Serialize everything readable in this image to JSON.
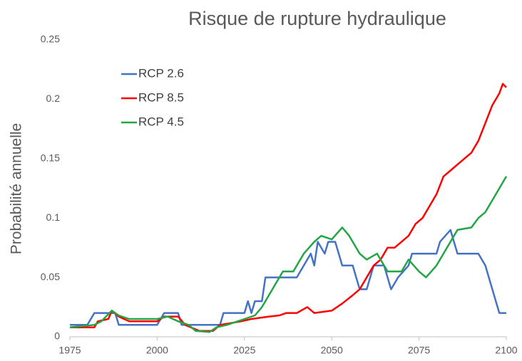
{
  "chart_data": {
    "type": "line",
    "title": "Risque de rupture hydraulique",
    "y_label": "Probabilité annuelle",
    "xlim": [
      1975,
      2100
    ],
    "xticks": [
      1975,
      2000,
      2025,
      2050,
      2075,
      2100
    ],
    "ylim": [
      0,
      0.25
    ],
    "yticks": [
      0,
      0.05,
      0.1,
      0.15,
      0.2,
      0.25
    ],
    "grid": false,
    "legend": "upper-left",
    "series": [
      {
        "name": "RCP 2.6",
        "color": "#4472c4",
        "x": [
          1975,
          1980,
          1982,
          1986,
          1988,
          1989,
          1995,
          2000,
          2002,
          2006,
          2007,
          2012,
          2018,
          2019,
          2025,
          2026,
          2027,
          2028,
          2030,
          2031,
          2036,
          2040,
          2042,
          2044,
          2045,
          2046,
          2048,
          2049,
          2051,
          2053,
          2056,
          2058,
          2060,
          2062,
          2065,
          2067,
          2069,
          2072,
          2073,
          2080,
          2081,
          2084,
          2086,
          2092,
          2094,
          2096,
          2098,
          2100
        ],
        "values": [
          0.01,
          0.01,
          0.02,
          0.02,
          0.02,
          0.01,
          0.01,
          0.01,
          0.02,
          0.02,
          0.01,
          0.01,
          0.01,
          0.02,
          0.02,
          0.03,
          0.02,
          0.03,
          0.03,
          0.05,
          0.05,
          0.05,
          0.06,
          0.07,
          0.06,
          0.08,
          0.07,
          0.08,
          0.08,
          0.06,
          0.06,
          0.04,
          0.04,
          0.06,
          0.06,
          0.04,
          0.05,
          0.06,
          0.07,
          0.07,
          0.08,
          0.09,
          0.07,
          0.07,
          0.06,
          0.04,
          0.02,
          0.02
        ]
      },
      {
        "name": "RCP 8.5",
        "color": "#ff0000",
        "x": [
          1975,
          1982,
          1983,
          1986,
          1987,
          1989,
          1992,
          2000,
          2002,
          2006,
          2008,
          2012,
          2016,
          2018,
          2024,
          2027,
          2032,
          2035,
          2037,
          2040,
          2043,
          2045,
          2050,
          2053,
          2056,
          2058,
          2060,
          2062,
          2064,
          2066,
          2068,
          2070,
          2072,
          2074,
          2076,
          2078,
          2080,
          2082,
          2084,
          2086,
          2088,
          2090,
          2092,
          2094,
          2096,
          2098,
          2099,
          2100
        ],
        "values": [
          0.008,
          0.008,
          0.013,
          0.015,
          0.022,
          0.017,
          0.013,
          0.013,
          0.017,
          0.017,
          0.01,
          0.005,
          0.005,
          0.01,
          0.013,
          0.015,
          0.017,
          0.018,
          0.02,
          0.02,
          0.025,
          0.02,
          0.022,
          0.028,
          0.035,
          0.04,
          0.05,
          0.06,
          0.065,
          0.075,
          0.075,
          0.08,
          0.085,
          0.095,
          0.1,
          0.11,
          0.12,
          0.135,
          0.14,
          0.145,
          0.15,
          0.155,
          0.165,
          0.18,
          0.195,
          0.205,
          0.213,
          0.21
        ]
      },
      {
        "name": "RCP 4.5",
        "color": "#22a645",
        "x": [
          1975,
          1982,
          1984,
          1987,
          1989,
          1992,
          2000,
          2003,
          2006,
          2009,
          2011,
          2015,
          2017,
          2020,
          2025,
          2028,
          2030,
          2032,
          2034,
          2036,
          2039,
          2042,
          2045,
          2047,
          2050,
          2053,
          2055,
          2058,
          2060,
          2063,
          2066,
          2070,
          2072,
          2075,
          2077,
          2080,
          2083,
          2086,
          2090,
          2092,
          2094,
          2096,
          2098,
          2100
        ],
        "values": [
          0.008,
          0.01,
          0.013,
          0.022,
          0.018,
          0.015,
          0.015,
          0.017,
          0.013,
          0.01,
          0.005,
          0.004,
          0.008,
          0.01,
          0.015,
          0.018,
          0.025,
          0.035,
          0.045,
          0.055,
          0.055,
          0.07,
          0.08,
          0.085,
          0.082,
          0.092,
          0.085,
          0.07,
          0.065,
          0.07,
          0.055,
          0.055,
          0.065,
          0.055,
          0.05,
          0.06,
          0.075,
          0.09,
          0.092,
          0.1,
          0.105,
          0.115,
          0.125,
          0.135
        ]
      }
    ]
  }
}
